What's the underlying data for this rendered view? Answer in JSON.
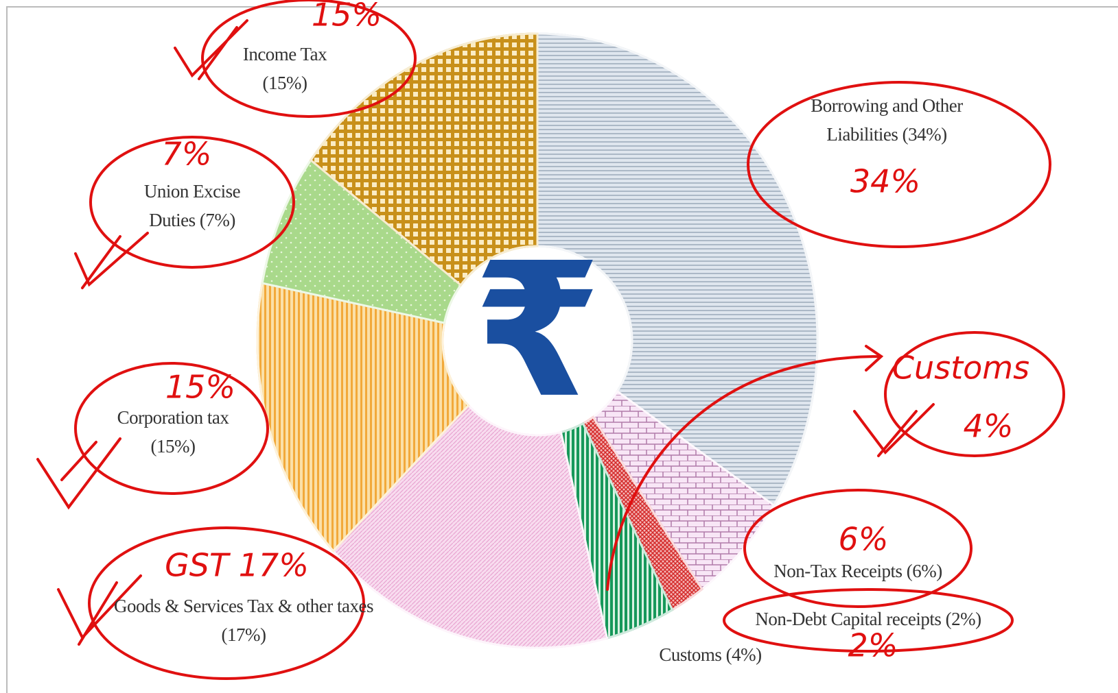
{
  "chart_data": {
    "type": "pie",
    "donut": true,
    "center_label": "₹",
    "center_color": "#1a4fa0",
    "categories": [
      "Borrowing and Other Liabilities",
      "Non-Tax Receipts",
      "Non-Debt Capital receipts",
      "Customs",
      "Goods & Services Tax & other taxes",
      "Corporation tax",
      "Union Excise Duties",
      "Income Tax"
    ],
    "values": [
      34,
      6,
      2,
      4,
      17,
      15,
      7,
      15
    ],
    "value_labels": [
      "(34%)",
      "(6%)",
      "(2%)",
      "(4%)",
      "(17%)",
      "(15%)",
      "(7%)",
      "(15%)"
    ],
    "colors": [
      "#c6d0dd",
      "#f3dcf0",
      "#e4585a",
      "#16985a",
      "#f6cbe9",
      "#f6bf52",
      "#a9d98b",
      "#d6a426"
    ],
    "annotations": [
      "15%",
      "7%",
      "15%",
      "GST 17%",
      "34%",
      "Customs",
      "4%",
      "6%",
      "2%"
    ],
    "annotation_color": "#e01010"
  }
}
